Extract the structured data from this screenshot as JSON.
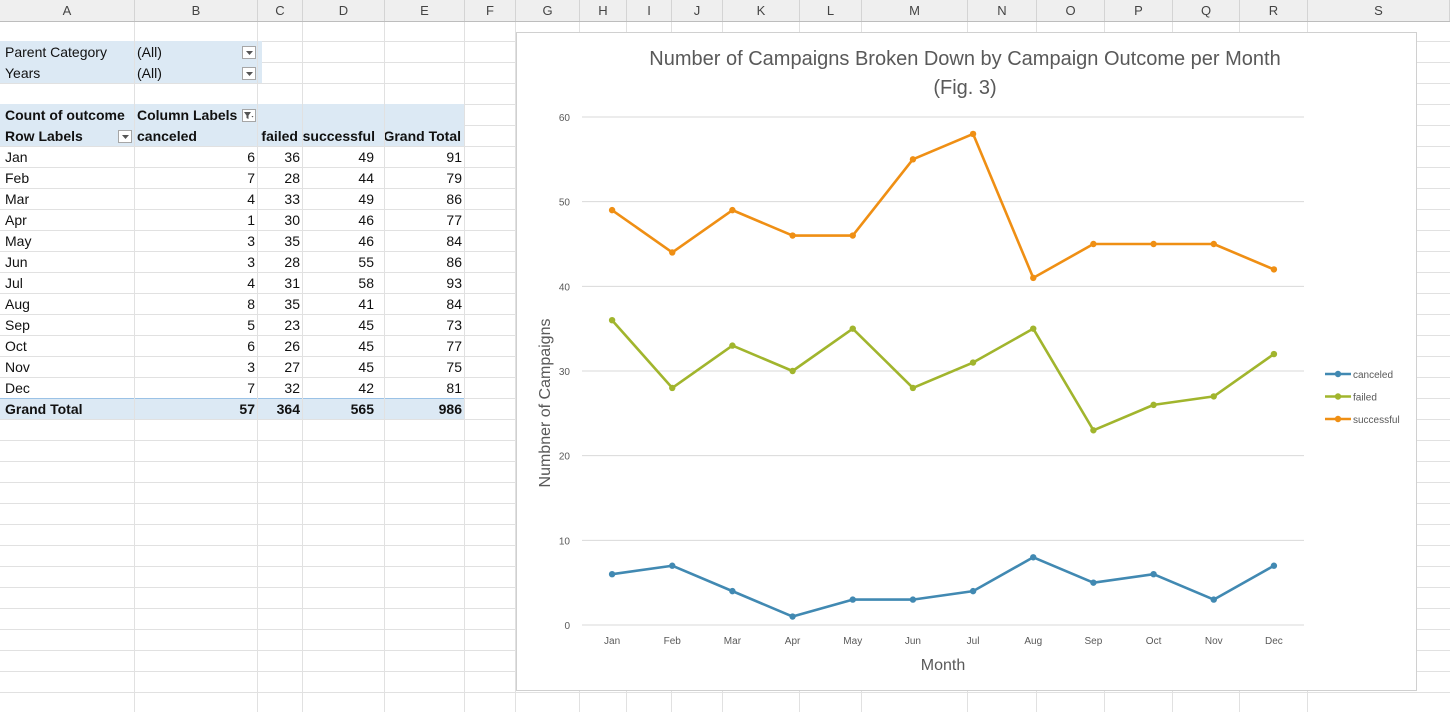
{
  "columns": [
    "A",
    "B",
    "C",
    "D",
    "E",
    "F",
    "G",
    "H",
    "I",
    "J",
    "K",
    "L",
    "M",
    "N",
    "O",
    "P",
    "Q",
    "R",
    "S"
  ],
  "filters": [
    {
      "label": "Parent Category",
      "value": "(All)"
    },
    {
      "label": "Years",
      "value": "(All)"
    }
  ],
  "pivot": {
    "corner": "Count of outcome",
    "column_labels": "Column Labels",
    "row_labels": "Row Labels",
    "headers": [
      "canceled",
      "failed",
      "successful",
      "Grand Total"
    ],
    "rows": [
      {
        "label": "Jan",
        "values": [
          "6",
          "36",
          "49",
          "91"
        ]
      },
      {
        "label": "Feb",
        "values": [
          "7",
          "28",
          "44",
          "79"
        ]
      },
      {
        "label": "Mar",
        "values": [
          "4",
          "33",
          "49",
          "86"
        ]
      },
      {
        "label": "Apr",
        "values": [
          "1",
          "30",
          "46",
          "77"
        ]
      },
      {
        "label": "May",
        "values": [
          "3",
          "35",
          "46",
          "84"
        ]
      },
      {
        "label": "Jun",
        "values": [
          "3",
          "28",
          "55",
          "86"
        ]
      },
      {
        "label": "Jul",
        "values": [
          "4",
          "31",
          "58",
          "93"
        ]
      },
      {
        "label": "Aug",
        "values": [
          "8",
          "35",
          "41",
          "84"
        ]
      },
      {
        "label": "Sep",
        "values": [
          "5",
          "23",
          "45",
          "73"
        ]
      },
      {
        "label": "Oct",
        "values": [
          "6",
          "26",
          "45",
          "77"
        ]
      },
      {
        "label": "Nov",
        "values": [
          "3",
          "27",
          "45",
          "75"
        ]
      },
      {
        "label": "Dec",
        "values": [
          "7",
          "32",
          "42",
          "81"
        ]
      }
    ],
    "total": {
      "label": "Grand Total",
      "values": [
        "57",
        "364",
        "565",
        "986"
      ]
    }
  },
  "chart_data": {
    "type": "line",
    "title": "Number of Campaigns Broken Down by Campaign Outcome per Month",
    "subtitle": "(Fig. 3)",
    "xlabel": "Month",
    "ylabel": "Numbner  of Campaigns",
    "categories": [
      "Jan",
      "Feb",
      "Mar",
      "Apr",
      "May",
      "Jun",
      "Jul",
      "Aug",
      "Sep",
      "Oct",
      "Nov",
      "Dec"
    ],
    "ylim": [
      0,
      60
    ],
    "yticks": [
      0,
      10,
      20,
      30,
      40,
      50,
      60
    ],
    "grid": true,
    "legend": "right",
    "series": [
      {
        "name": "canceled",
        "color": "#4189b2",
        "values": [
          6,
          7,
          4,
          1,
          3,
          3,
          4,
          8,
          5,
          6,
          3,
          7
        ]
      },
      {
        "name": "failed",
        "color": "#a1b52d",
        "values": [
          36,
          28,
          33,
          30,
          35,
          28,
          31,
          35,
          23,
          26,
          27,
          32
        ]
      },
      {
        "name": "successful",
        "color": "#ef8f14",
        "values": [
          49,
          44,
          49,
          46,
          46,
          55,
          58,
          41,
          45,
          45,
          45,
          42
        ]
      }
    ]
  }
}
